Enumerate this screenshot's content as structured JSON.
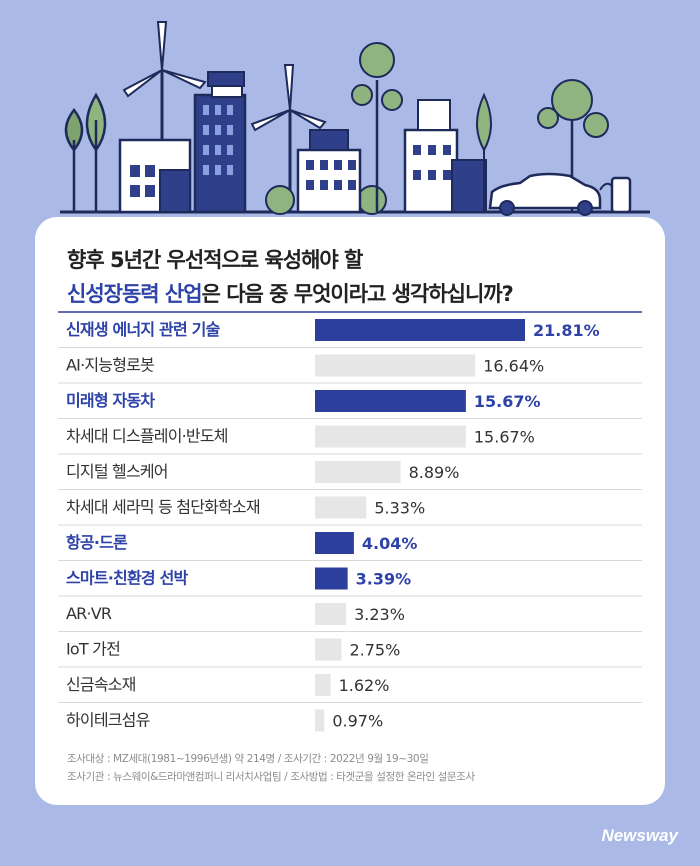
{
  "title": {
    "line1": "향후 5년간 우선적으로 육성해야 할",
    "line2_accent": "신성장동력 산업",
    "line2_rest": "은 다음 중 무엇이라고 생각하십니까?"
  },
  "chart_data": {
    "type": "bar",
    "orientation": "horizontal",
    "categories": [
      "신재생 에너지 관련 기술",
      "AI·지능형로봇",
      "미래형 자동차",
      "차세대 디스플레이·반도체",
      "디지털 헬스케어",
      "차세대 세라믹 등 첨단화학소재",
      "항공·드론",
      "스마트·친환경 선박",
      "AR·VR",
      "IoT 가전",
      "신금속소재",
      "하이테크섬유"
    ],
    "values": [
      21.81,
      16.64,
      15.67,
      15.67,
      8.89,
      5.33,
      4.04,
      3.39,
      3.23,
      2.75,
      1.62,
      0.97
    ],
    "value_labels": [
      "21.81%",
      "16.64%",
      "15.67%",
      "15.67%",
      "8.89%",
      "5.33%",
      "4.04%",
      "3.39%",
      "3.23%",
      "2.75%",
      "1.62%",
      "0.97%"
    ],
    "highlighted": [
      true,
      false,
      true,
      false,
      false,
      false,
      true,
      true,
      false,
      false,
      false,
      false
    ],
    "xlim": [
      0,
      21.81
    ],
    "colors": {
      "highlight": "#2c3f9c",
      "normal": "#e6e6e6",
      "highlight_text": "#2e43a8",
      "normal_text": "#333333"
    }
  },
  "footnote": {
    "line1": "조사대상 : MZ세대(1981~1996년생) 약 214명 / 조사기간 : 2022년 9월 19~30일",
    "line2": "조사기관 : 뉴스웨이&드라마앤컴퍼니 리서치사업팀 / 조사방법 : 타겟군을 설정한 온라인 설문조사"
  },
  "brand": "Newsway"
}
